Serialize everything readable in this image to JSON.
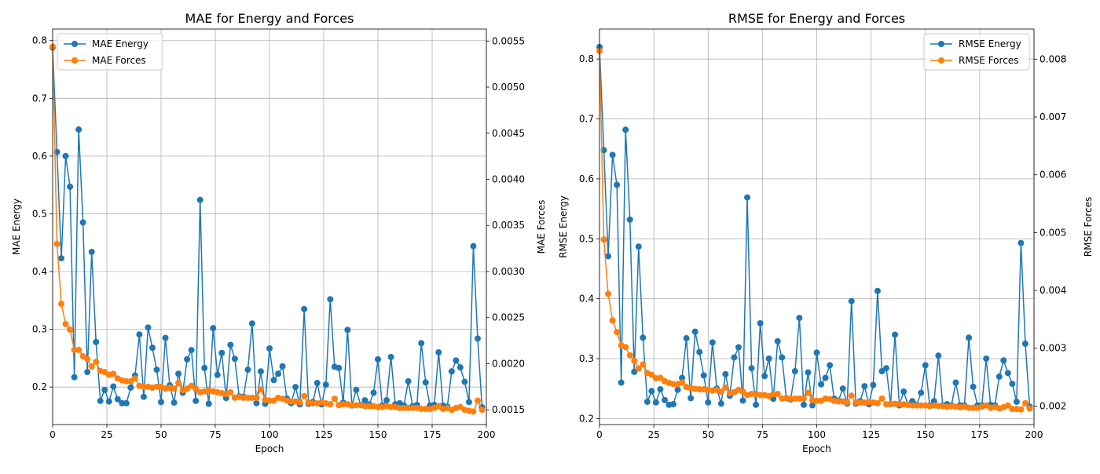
{
  "chart_data": [
    {
      "type": "line",
      "title": "MAE for Energy and Forces",
      "xlabel": "Epoch",
      "ylabel_left": "MAE Energy",
      "ylabel_right": "MAE Forces",
      "xlim": [
        0,
        200
      ],
      "ylim_left": [
        0.135,
        0.82
      ],
      "ylim_right": [
        0.00134,
        0.00563
      ],
      "x_ticks": [
        "0",
        "25",
        "50",
        "75",
        "100",
        "125",
        "150",
        "175",
        "200"
      ],
      "y_ticks_left": [
        "0.2",
        "0.3",
        "0.4",
        "0.5",
        "0.6",
        "0.7",
        "0.8"
      ],
      "y_ticks_right": [
        "0.0015",
        "0.0020",
        "0.0025",
        "0.0030",
        "0.0035",
        "0.0040",
        "0.0045",
        "0.0050",
        "0.0055"
      ],
      "grid": true,
      "legend_position": "top-left",
      "x": [
        0,
        2,
        4,
        6,
        8,
        10,
        12,
        14,
        16,
        18,
        20,
        22,
        24,
        26,
        28,
        30,
        32,
        34,
        36,
        38,
        40,
        42,
        44,
        46,
        48,
        50,
        52,
        54,
        56,
        58,
        60,
        62,
        64,
        66,
        68,
        70,
        72,
        74,
        76,
        78,
        80,
        82,
        84,
        86,
        88,
        90,
        92,
        94,
        96,
        98,
        100,
        102,
        104,
        106,
        108,
        110,
        112,
        114,
        116,
        118,
        120,
        122,
        124,
        126,
        128,
        130,
        132,
        134,
        136,
        138,
        140,
        142,
        144,
        146,
        148,
        150,
        152,
        154,
        156,
        158,
        160,
        162,
        164,
        166,
        168,
        170,
        172,
        174,
        176,
        178,
        180,
        182,
        184,
        186,
        188,
        190,
        192,
        194,
        196,
        198
      ],
      "series": [
        {
          "name": "MAE Energy",
          "axis": "left",
          "color": "#1f77b4",
          "values": [
            0.788,
            0.607,
            0.423,
            0.6,
            0.547,
            0.217,
            0.646,
            0.485,
            0.226,
            0.434,
            0.278,
            0.176,
            0.195,
            0.175,
            0.201,
            0.179,
            0.172,
            0.172,
            0.199,
            0.22,
            0.291,
            0.183,
            0.303,
            0.268,
            0.23,
            0.174,
            0.285,
            0.203,
            0.173,
            0.223,
            0.19,
            0.248,
            0.264,
            0.176,
            0.524,
            0.233,
            0.171,
            0.302,
            0.221,
            0.259,
            0.181,
            0.273,
            0.249,
            0.184,
            0.183,
            0.23,
            0.31,
            0.172,
            0.227,
            0.171,
            0.267,
            0.212,
            0.223,
            0.236,
            0.18,
            0.172,
            0.2,
            0.17,
            0.335,
            0.171,
            0.174,
            0.207,
            0.17,
            0.204,
            0.352,
            0.235,
            0.233,
            0.173,
            0.299,
            0.168,
            0.195,
            0.169,
            0.177,
            0.17,
            0.19,
            0.248,
            0.168,
            0.177,
            0.252,
            0.17,
            0.172,
            0.168,
            0.21,
            0.167,
            0.169,
            0.276,
            0.208,
            0.168,
            0.169,
            0.26,
            0.168,
            0.166,
            0.227,
            0.246,
            0.234,
            0.209,
            0.174,
            0.444,
            0.284,
            0.165
          ]
        },
        {
          "name": "MAE Forces",
          "axis": "right",
          "color": "#ff7f0e",
          "values": [
            0.00544,
            0.0033,
            0.00265,
            0.00243,
            0.00237,
            0.00215,
            0.00215,
            0.00208,
            0.00205,
            0.00197,
            0.00202,
            0.00192,
            0.00191,
            0.00188,
            0.00189,
            0.00184,
            0.00182,
            0.00181,
            0.00181,
            0.00184,
            0.00176,
            0.00175,
            0.00175,
            0.00174,
            0.00175,
            0.00175,
            0.00173,
            0.00174,
            0.00173,
            0.00179,
            0.00171,
            0.00173,
            0.00176,
            0.00173,
            0.00169,
            0.0017,
            0.00171,
            0.0017,
            0.00169,
            0.00168,
            0.00167,
            0.00169,
            0.00163,
            0.00164,
            0.00163,
            0.00163,
            0.00163,
            0.00163,
            0.00172,
            0.00161,
            0.0016,
            0.0016,
            0.00163,
            0.00162,
            0.0016,
            0.00159,
            0.00159,
            0.00158,
            0.00165,
            0.00158,
            0.00157,
            0.00157,
            0.00158,
            0.00157,
            0.00156,
            0.00162,
            0.00155,
            0.00156,
            0.00156,
            0.00155,
            0.00155,
            0.00155,
            0.00154,
            0.00154,
            0.00154,
            0.00153,
            0.00153,
            0.00154,
            0.00153,
            0.00153,
            0.00152,
            0.00152,
            0.00152,
            0.00152,
            0.00152,
            0.00151,
            0.00151,
            0.00151,
            0.00152,
            0.00154,
            0.00151,
            0.00152,
            0.0015,
            0.00152,
            0.00153,
            0.0015,
            0.00149,
            0.00148,
            0.0016,
            0.0015
          ]
        }
      ]
    },
    {
      "type": "line",
      "title": "RMSE for Energy and Forces",
      "xlabel": "Epoch",
      "ylabel_left": "RMSE Energy",
      "ylabel_right": "RMSE Forces",
      "xlim": [
        0,
        200
      ],
      "ylim_left": [
        0.19,
        0.85
      ],
      "ylim_right": [
        0.00168,
        0.00852
      ],
      "x_ticks": [
        "0",
        "25",
        "50",
        "75",
        "100",
        "125",
        "150",
        "175",
        "200"
      ],
      "y_ticks_left": [
        "0.2",
        "0.3",
        "0.4",
        "0.5",
        "0.6",
        "0.7",
        "0.8"
      ],
      "y_ticks_right": [
        "0.002",
        "0.003",
        "0.004",
        "0.005",
        "0.006",
        "0.007",
        "0.008"
      ],
      "grid": true,
      "legend_position": "top-right",
      "x": [
        0,
        2,
        4,
        6,
        8,
        10,
        12,
        14,
        16,
        18,
        20,
        22,
        24,
        26,
        28,
        30,
        32,
        34,
        36,
        38,
        40,
        42,
        44,
        46,
        48,
        50,
        52,
        54,
        56,
        58,
        60,
        62,
        64,
        66,
        68,
        70,
        72,
        74,
        76,
        78,
        80,
        82,
        84,
        86,
        88,
        90,
        92,
        94,
        96,
        98,
        100,
        102,
        104,
        106,
        108,
        110,
        112,
        114,
        116,
        118,
        120,
        122,
        124,
        126,
        128,
        130,
        132,
        134,
        136,
        138,
        140,
        142,
        144,
        146,
        148,
        150,
        152,
        154,
        156,
        158,
        160,
        162,
        164,
        166,
        168,
        170,
        172,
        174,
        176,
        178,
        180,
        182,
        184,
        186,
        188,
        190,
        192,
        194,
        196,
        198
      ],
      "series": [
        {
          "name": "RMSE Energy",
          "axis": "left",
          "color": "#1f77b4",
          "values": [
            0.82,
            0.648,
            0.471,
            0.64,
            0.59,
            0.26,
            0.682,
            0.532,
            0.278,
            0.487,
            0.335,
            0.228,
            0.246,
            0.227,
            0.249,
            0.231,
            0.223,
            0.224,
            0.248,
            0.268,
            0.334,
            0.234,
            0.345,
            0.311,
            0.272,
            0.227,
            0.327,
            0.25,
            0.225,
            0.274,
            0.238,
            0.302,
            0.319,
            0.23,
            0.569,
            0.284,
            0.223,
            0.359,
            0.271,
            0.3,
            0.233,
            0.329,
            0.302,
            0.234,
            0.232,
            0.279,
            0.368,
            0.223,
            0.277,
            0.222,
            0.31,
            0.257,
            0.268,
            0.289,
            0.233,
            0.23,
            0.25,
            0.225,
            0.396,
            0.225,
            0.229,
            0.254,
            0.224,
            0.256,
            0.413,
            0.279,
            0.284,
            0.224,
            0.34,
            0.222,
            0.245,
            0.223,
            0.229,
            0.223,
            0.243,
            0.289,
            0.222,
            0.229,
            0.305,
            0.222,
            0.224,
            0.222,
            0.26,
            0.222,
            0.222,
            0.335,
            0.253,
            0.222,
            0.222,
            0.3,
            0.223,
            0.222,
            0.27,
            0.297,
            0.276,
            0.258,
            0.228,
            0.493,
            0.325,
            0.22
          ]
        },
        {
          "name": "RMSE Forces",
          "axis": "right",
          "color": "#ff7f0e",
          "values": [
            0.00814,
            0.00488,
            0.00394,
            0.00348,
            0.00328,
            0.00305,
            0.00302,
            0.00288,
            0.00278,
            0.00265,
            0.00272,
            0.00257,
            0.00254,
            0.00248,
            0.00249,
            0.00243,
            0.0024,
            0.00238,
            0.00238,
            0.00241,
            0.00233,
            0.00231,
            0.0023,
            0.00229,
            0.00229,
            0.00228,
            0.00227,
            0.00228,
            0.00225,
            0.00232,
            0.00222,
            0.00224,
            0.00228,
            0.00225,
            0.00219,
            0.00221,
            0.00221,
            0.00219,
            0.00219,
            0.00217,
            0.00221,
            0.00221,
            0.00213,
            0.00214,
            0.00213,
            0.00213,
            0.00213,
            0.00213,
            0.00223,
            0.0021,
            0.00209,
            0.00209,
            0.00213,
            0.00212,
            0.00209,
            0.00208,
            0.00208,
            0.00206,
            0.00218,
            0.00206,
            0.00206,
            0.00206,
            0.00207,
            0.00206,
            0.00205,
            0.00213,
            0.00203,
            0.00204,
            0.00204,
            0.00203,
            0.00203,
            0.00202,
            0.00201,
            0.00201,
            0.00201,
            0.00201,
            0.002,
            0.00201,
            0.002,
            0.002,
            0.00199,
            0.002,
            0.00199,
            0.00198,
            0.00199,
            0.00197,
            0.00197,
            0.00197,
            0.00199,
            0.00201,
            0.00197,
            0.00198,
            0.00196,
            0.00198,
            0.00201,
            0.00195,
            0.00195,
            0.00194,
            0.00205,
            0.00196
          ]
        }
      ]
    }
  ]
}
